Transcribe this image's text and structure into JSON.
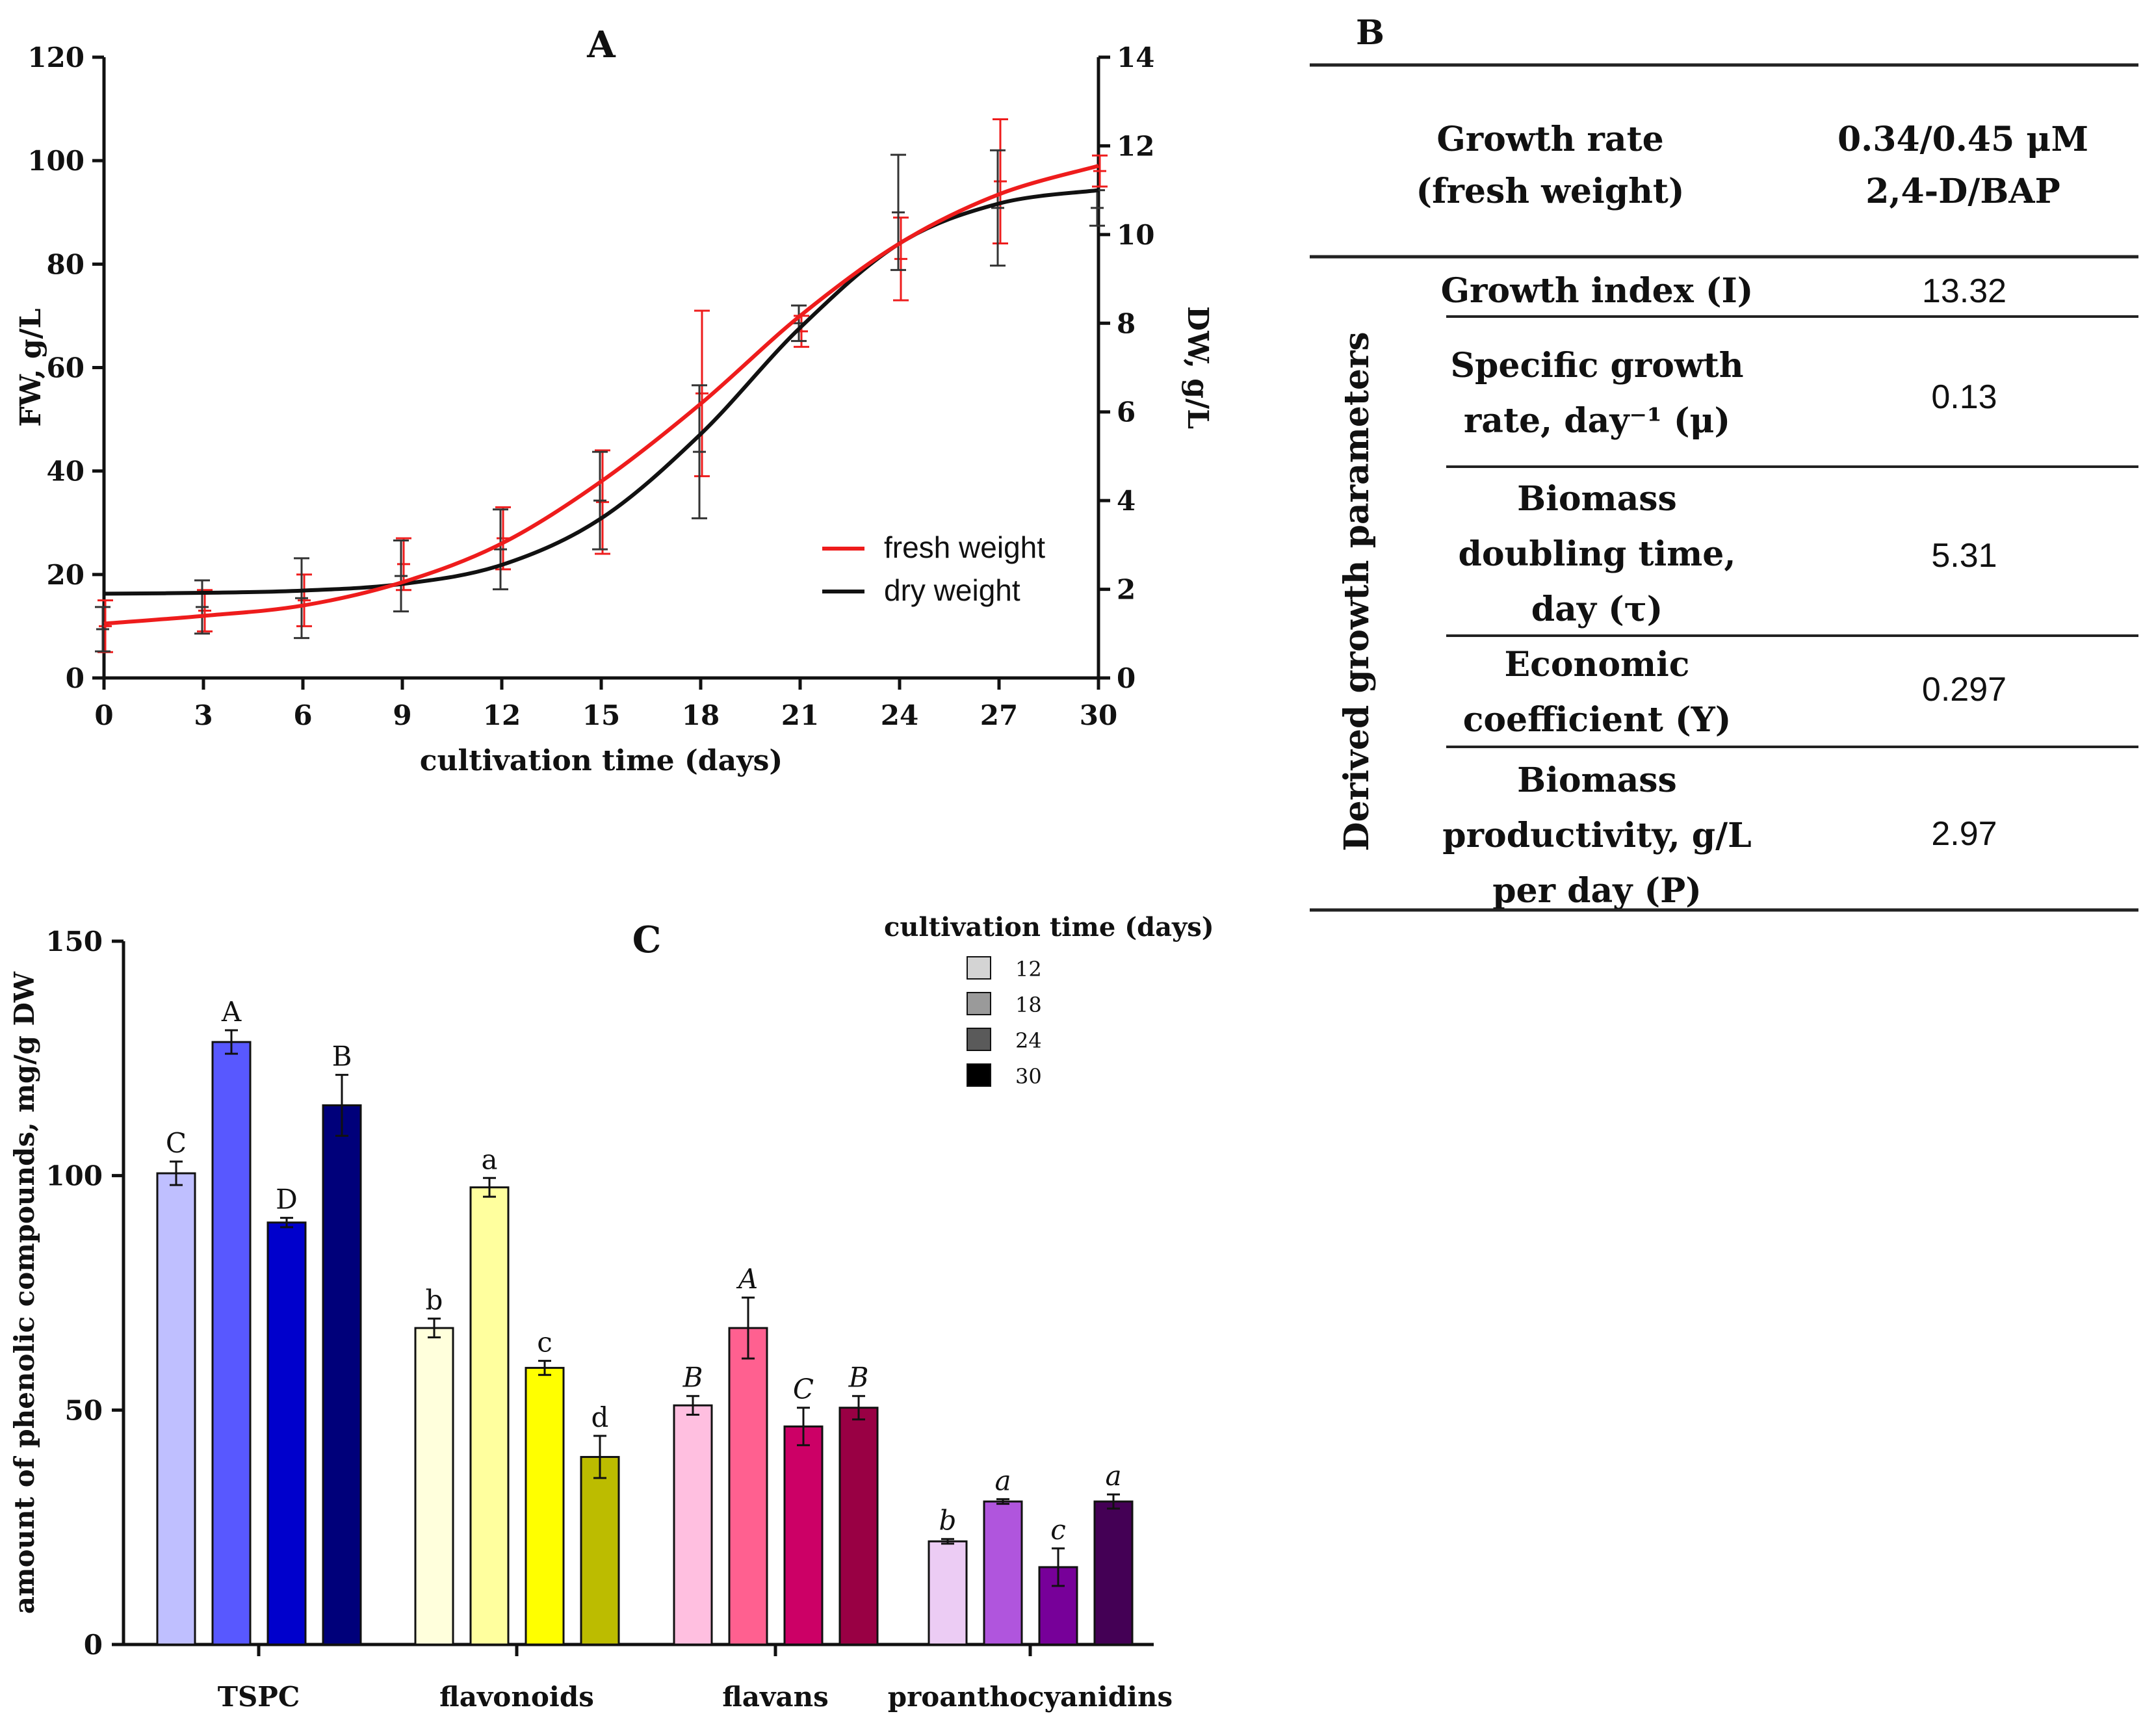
{
  "chart_data": [
    {
      "panel": "A",
      "type": "line",
      "title": "A",
      "xlabel": "cultivation time (days)",
      "ylabel": "FW, g/L",
      "y2label": "DW, g/L",
      "xlim": [
        0,
        30
      ],
      "ylim": [
        0,
        120
      ],
      "y2lim": [
        0,
        14
      ],
      "xticks": [
        0,
        3,
        6,
        9,
        12,
        15,
        18,
        21,
        24,
        27,
        30
      ],
      "yticks": [
        0,
        20,
        40,
        60,
        80,
        100,
        120
      ],
      "y2ticks": [
        0,
        2,
        4,
        6,
        8,
        10,
        12,
        14
      ],
      "legend_position": "bottom-right",
      "series": [
        {
          "name": "fresh weight",
          "axis": "left",
          "color": "#ee1c1c",
          "x": [
            0,
            3,
            6,
            9,
            12,
            15,
            18,
            21,
            24,
            27,
            30
          ],
          "values": [
            10,
            13,
            15,
            22,
            27,
            34,
            55,
            67,
            81,
            96,
            98
          ],
          "errors": [
            5,
            4,
            5,
            5,
            6,
            10,
            16,
            3,
            8,
            12,
            3
          ],
          "curve": [
            [
              0,
              10.5
            ],
            [
              3,
              12
            ],
            [
              6,
              14
            ],
            [
              9,
              18.5
            ],
            [
              12,
              26
            ],
            [
              15,
              38
            ],
            [
              18,
              53
            ],
            [
              21,
              70
            ],
            [
              24,
              84
            ],
            [
              27,
              93.5
            ],
            [
              30,
              99
            ]
          ]
        },
        {
          "name": "dry weight",
          "axis": "right",
          "color": "#111111",
          "x": [
            0,
            3,
            6,
            9,
            12,
            15,
            18,
            21,
            24,
            27,
            30
          ],
          "values": [
            1.1,
            1.6,
            1.8,
            2.3,
            2.9,
            4.0,
            5.1,
            8.0,
            10.5,
            10.6,
            10.6
          ],
          "errors": [
            0.5,
            0.6,
            0.9,
            0.8,
            0.9,
            1.1,
            1.5,
            0.4,
            1.3,
            1.3,
            0.4
          ],
          "curve": [
            [
              0,
              1.9
            ],
            [
              3,
              1.92
            ],
            [
              6,
              1.97
            ],
            [
              9,
              2.12
            ],
            [
              12,
              2.55
            ],
            [
              15,
              3.6
            ],
            [
              18,
              5.5
            ],
            [
              21,
              7.9
            ],
            [
              24,
              9.8
            ],
            [
              27,
              10.7
            ],
            [
              30,
              11
            ]
          ]
        }
      ]
    },
    {
      "panel": "C",
      "type": "bar",
      "title": "C",
      "xlabel": "",
      "ylabel": "amount of phenolic compounds, mg/g DW",
      "ylim": [
        0,
        150
      ],
      "yticks": [
        0,
        50,
        100,
        150
      ],
      "categories": [
        "TSPC",
        "flavonoids",
        "flavans",
        "proanthocyanidins"
      ],
      "legend_title": "cultivation time (days)",
      "legend_position": "top-right",
      "series": [
        {
          "name": "12",
          "legend_color": "#d4d4d4",
          "values": [
            100.5,
            67.5,
            51,
            22
          ],
          "errors": [
            2.5,
            2,
            2,
            0.5
          ],
          "letters": [
            "C",
            "b",
            "B",
            "b"
          ]
        },
        {
          "name": "18",
          "legend_color": "#9a9a9a",
          "values": [
            128.5,
            97.5,
            67.5,
            30.5
          ],
          "errors": [
            2.5,
            2,
            6.5,
            0.5
          ],
          "letters": [
            "A",
            "a",
            "A",
            "a"
          ]
        },
        {
          "name": "24",
          "legend_color": "#5a5a5a",
          "values": [
            90,
            59,
            46.5,
            16.5
          ],
          "errors": [
            1,
            1.5,
            4,
            4
          ],
          "letters": [
            "D",
            "c",
            "C",
            "c"
          ]
        },
        {
          "name": "30",
          "legend_color": "#000000",
          "values": [
            115,
            40,
            50.5,
            30.5
          ],
          "errors": [
            6.5,
            4.5,
            2.5,
            1.5
          ],
          "letters": [
            "B",
            "d",
            "B",
            "a"
          ]
        }
      ],
      "bar_colors": [
        [
          "#bfbfff",
          "#5858ff",
          "#0000cc",
          "#00007a"
        ],
        [
          "#ffffdc",
          "#ffff9e",
          "#ffff00",
          "#bcbc00"
        ],
        [
          "#ffbfe0",
          "#ff6090",
          "#cc0066",
          "#990044"
        ],
        [
          "#ecccf4",
          "#b055dd",
          "#770099",
          "#440055"
        ]
      ],
      "letter_styles": [
        "upright",
        "upright",
        "italic",
        "italic"
      ]
    }
  ],
  "table": {
    "panel_label": "B",
    "header_label": "Growth rate\n(fresh weight)",
    "header_value": "0.34/0.45 μM\n2,4-D/BAP",
    "group_label": "Derived growth parameters",
    "rows": [
      {
        "label": "Growth index (I)",
        "value": "13.32"
      },
      {
        "label": "Specific growth\nrate, day⁻¹ (μ)",
        "value": "0.13"
      },
      {
        "label": "Biomass\ndoubling time,\nday (τ)",
        "value": "5.31"
      },
      {
        "label": "Economic\ncoefficient (Y)",
        "value": "0.297"
      },
      {
        "label": "Biomass\nproductivity, g/L\nper day (P)",
        "value": "2.97"
      }
    ]
  }
}
